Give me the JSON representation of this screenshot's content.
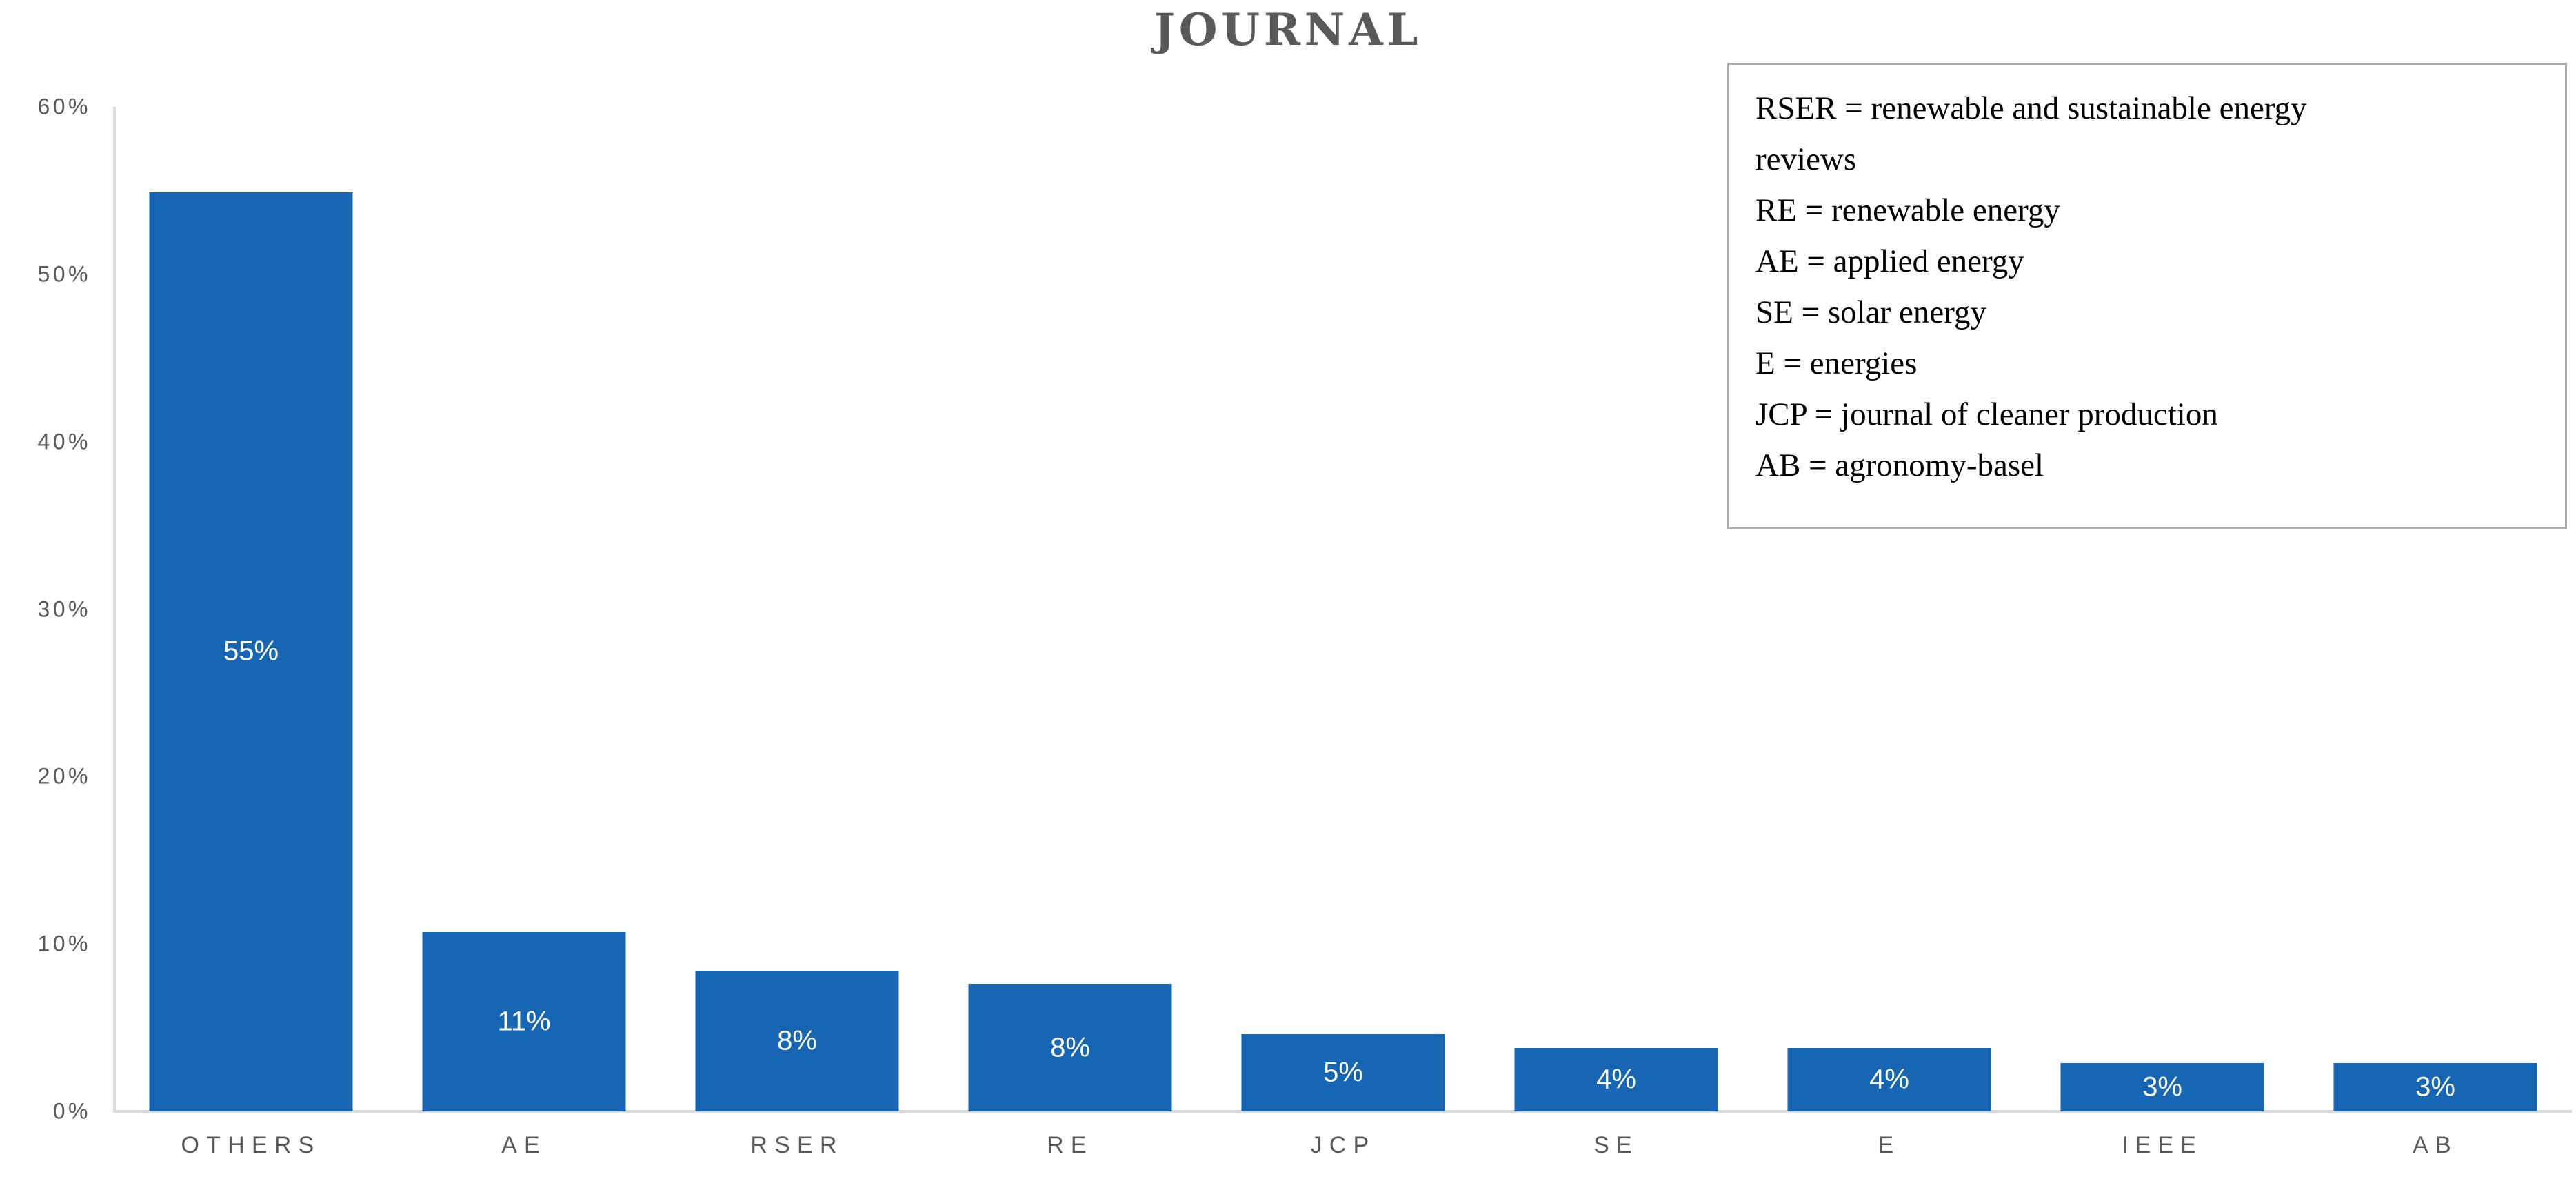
{
  "title": "JOURNAL",
  "chart_data": {
    "type": "bar",
    "title": "JOURNAL",
    "categories": [
      "OTHERS",
      "AE",
      "RSER",
      "RE",
      "JCP",
      "SE",
      "E",
      "IEEE",
      "AB"
    ],
    "values": [
      55,
      11,
      8,
      8,
      5,
      4,
      4,
      3,
      3
    ],
    "value_labels": [
      "55%",
      "11%",
      "8%",
      "8%",
      "5%",
      "4%",
      "4%",
      "3%",
      "3%"
    ],
    "plotted_values": [
      54.9,
      10.7,
      8.4,
      7.6,
      4.6,
      3.8,
      3.8,
      2.9,
      2.9
    ],
    "xlabel": "",
    "ylabel": "",
    "ylim": [
      0,
      60
    ],
    "yticks": [
      "0%",
      "10%",
      "20%",
      "30%",
      "40%",
      "50%",
      "60%"
    ],
    "grid": false,
    "legend_position": "top-right",
    "bar_color": "#1766b4",
    "bar_label_color": "#ffffff"
  },
  "legend": {
    "lines": [
      "RSER = renewable and sustainable energy",
      "reviews",
      "RE = renewable energy",
      "AE = applied energy",
      "SE = solar energy",
      "E = energies",
      "JCP = journal of cleaner production",
      "AB = agronomy-basel"
    ]
  },
  "colors": {
    "bar": "#1766b4",
    "axis_line": "#d9d9d9",
    "tick_text": "#595959",
    "title_text": "#595959",
    "legend_border": "#ababab",
    "legend_text": "#000000",
    "background": "#ffffff"
  }
}
